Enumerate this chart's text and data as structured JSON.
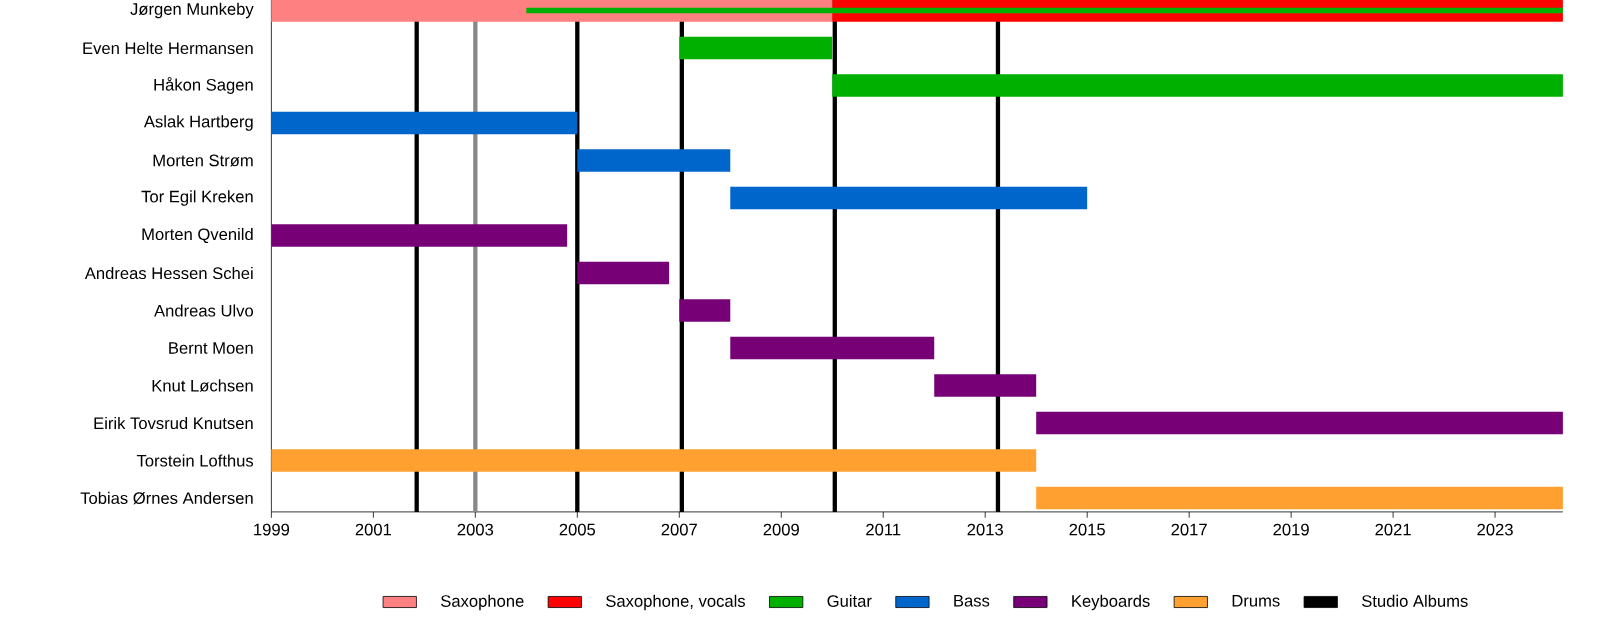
{
  "chart_data": {
    "type": "bar",
    "orientation": "horizontal",
    "legend": "bottom",
    "categories": [
      "Jørgen Munkeby",
      "Even Helte Hermansen",
      "Håkon Sagen",
      "Aslak Hartberg",
      "Morten Strøm",
      "Tor Egil Kreken",
      "Morten Qvenild",
      "Andreas Hessen Schei",
      "Andreas Ulvo",
      "Bernt Moen",
      "Knut Løchsen",
      "Eirik Tovsrud Knutsen",
      "Torstein Lofthus",
      "Tobias Ørnes Andersen"
    ],
    "xlim": [
      1999,
      2024.33
    ],
    "xticks": [
      1999,
      2001,
      2003,
      2005,
      2007,
      2009,
      2011,
      2013,
      2015,
      2017,
      2019,
      2021,
      2023
    ],
    "series": [
      {
        "name": "Saxophone",
        "color": "#ff8080",
        "values": [
          11,
          null,
          null,
          null,
          null,
          null,
          null,
          null,
          null,
          null,
          null,
          null,
          null,
          null
        ],
        "base": [
          1999,
          null,
          null,
          null,
          null,
          null,
          null,
          null,
          null,
          null,
          null,
          null,
          null,
          null
        ]
      },
      {
        "name": "Saxophone, vocals",
        "color": "#ff0000",
        "values": [
          14.33,
          null,
          null,
          null,
          null,
          null,
          null,
          null,
          null,
          null,
          null,
          null,
          null,
          null
        ],
        "base": [
          2010,
          null,
          null,
          null,
          null,
          null,
          null,
          null,
          null,
          null,
          null,
          null,
          null,
          null
        ]
      },
      {
        "name": "Guitar",
        "color": "#00b000",
        "values": [
          20.33,
          3,
          14.33,
          null,
          null,
          null,
          null,
          null,
          null,
          null,
          null,
          null,
          null,
          null
        ],
        "base": [
          2004,
          2007,
          2010,
          null,
          null,
          null,
          null,
          null,
          null,
          null,
          null,
          null,
          null,
          null
        ]
      },
      {
        "name": "Bass",
        "color": "#0066cc",
        "values": [
          null,
          null,
          null,
          6,
          3,
          7,
          null,
          null,
          null,
          null,
          null,
          null,
          null,
          null
        ],
        "base": [
          null,
          null,
          null,
          1999,
          2005,
          2008,
          null,
          null,
          null,
          null,
          null,
          null,
          null,
          null
        ]
      },
      {
        "name": "Keyboards",
        "color": "#770077",
        "values": [
          null,
          null,
          null,
          null,
          null,
          null,
          5.8,
          1.8,
          1,
          4,
          2,
          10.33,
          null,
          null
        ],
        "base": [
          null,
          null,
          null,
          null,
          null,
          null,
          1999,
          2005,
          2007,
          2008,
          2012,
          2014,
          null,
          null
        ]
      },
      {
        "name": "Drums",
        "color": "#ffa030",
        "values": [
          null,
          null,
          null,
          null,
          null,
          null,
          null,
          null,
          null,
          null,
          null,
          null,
          15,
          10.33
        ],
        "base": [
          null,
          null,
          null,
          null,
          null,
          null,
          null,
          null,
          null,
          null,
          null,
          null,
          1999,
          2014
        ]
      }
    ],
    "ref_lines": [
      {
        "axis": "x",
        "value": 2001.85,
        "label": "Studio Albums",
        "color": "#000000"
      },
      {
        "axis": "x",
        "value": 2003,
        "color": "#888888"
      },
      {
        "axis": "x",
        "value": 2005,
        "color": "#000000"
      },
      {
        "axis": "x",
        "value": 2007.05,
        "color": "#000000"
      },
      {
        "axis": "x",
        "value": 2010.05,
        "color": "#000000"
      },
      {
        "axis": "x",
        "value": 2013.25,
        "color": "#000000"
      }
    ]
  }
}
